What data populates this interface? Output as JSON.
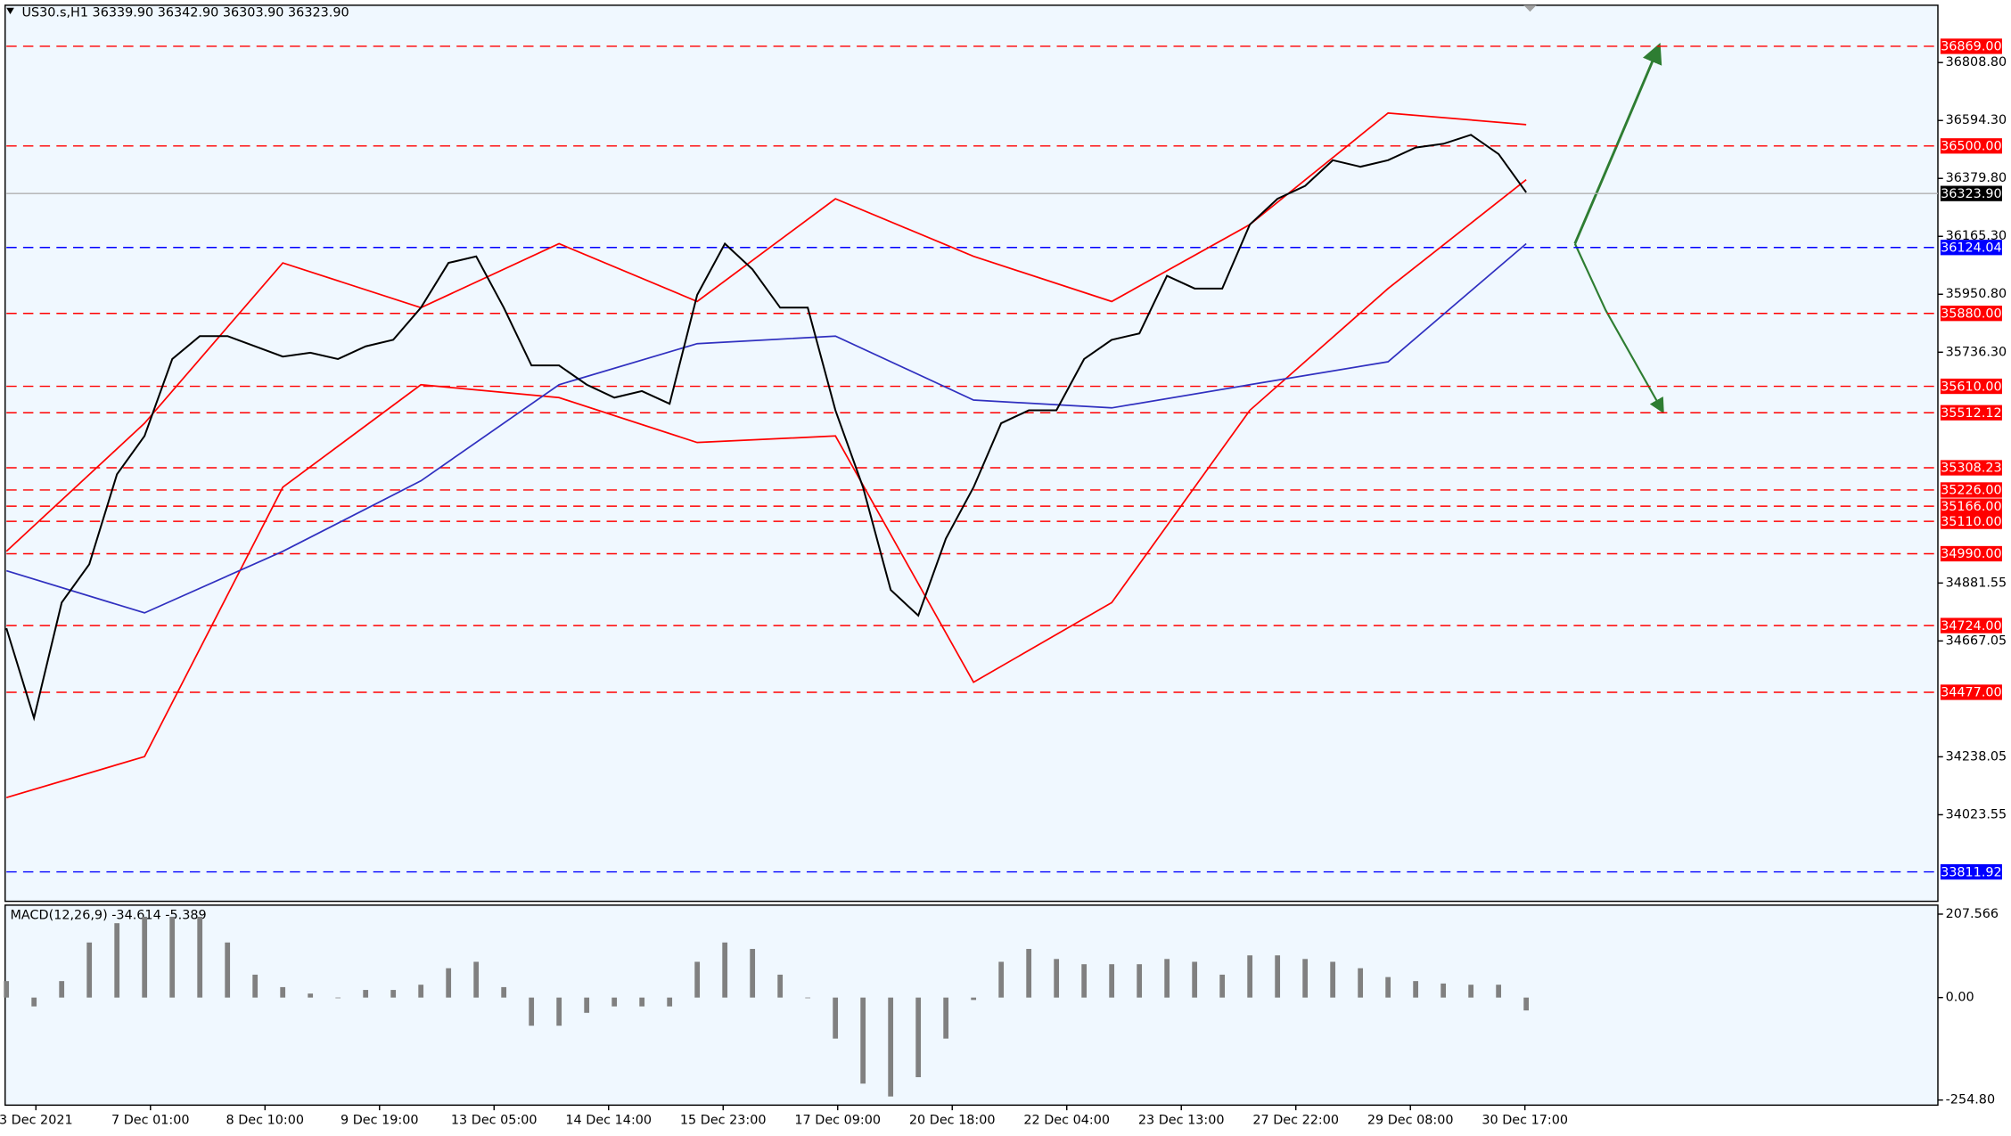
{
  "chart_data": [
    {
      "type": "line",
      "title": "US30.s,H1  36339.90 36342.90 36303.90 36323.90",
      "ylim": [
        33703,
        37021
      ],
      "yticks": [
        {
          "value": 36808.8,
          "label": "36808.80"
        },
        {
          "value": 36594.3,
          "label": "36594.30"
        },
        {
          "value": 36379.8,
          "label": "36379.80"
        },
        {
          "value": 36165.3,
          "label": "36165.30"
        },
        {
          "value": 35950.8,
          "label": "35950.80"
        },
        {
          "value": 35736.3,
          "label": "35736.30"
        },
        {
          "value": 34881.55,
          "label": "34881.55"
        },
        {
          "value": 34667.05,
          "label": "34667.05"
        },
        {
          "value": 34238.05,
          "label": "34238.05"
        },
        {
          "value": 34023.55,
          "label": "34023.55"
        }
      ],
      "x_labels": [
        "3 Dec 2021",
        "7 Dec 01:00",
        "8 Dec 10:00",
        "9 Dec 19:00",
        "13 Dec 05:00",
        "14 Dec 14:00",
        "15 Dec 23:00",
        "17 Dec 09:00",
        "20 Dec 18:00",
        "22 Dec 04:00",
        "23 Dec 13:00",
        "27 Dec 22:00",
        "29 Dec 08:00",
        "30 Dec 17:00"
      ],
      "levels": [
        {
          "value": 36869,
          "label": "36869.00",
          "color": "#ff0000",
          "line": "dashed"
        },
        {
          "value": 36500,
          "label": "36500.00",
          "color": "#ff0000",
          "line": "dashed"
        },
        {
          "value": 36323.9,
          "label": "36323.90",
          "color": "#000000",
          "line": "solid"
        },
        {
          "value": 36124.04,
          "label": "36124.04",
          "color": "#0000ff",
          "line": "dashed"
        },
        {
          "value": 35880,
          "label": "35880.00",
          "color": "#ff0000",
          "line": "dashed"
        },
        {
          "value": 35610,
          "label": "35610.00",
          "color": "#ff0000",
          "line": "dashed"
        },
        {
          "value": 35512.12,
          "label": "35512.12",
          "color": "#ff0000",
          "line": "dashed"
        },
        {
          "value": 35308.23,
          "label": "35308.23",
          "color": "#ff0000",
          "line": "dashed"
        },
        {
          "value": 35226,
          "label": "35226.00",
          "color": "#ff0000",
          "line": "dashed"
        },
        {
          "value": 35166,
          "label": "35166.00",
          "color": "#ff0000",
          "line": "dashed"
        },
        {
          "value": 35110,
          "label": "35110.00",
          "color": "#ff0000",
          "line": "dashed"
        },
        {
          "value": 34990,
          "label": "34990.00",
          "color": "#ff0000",
          "line": "dashed"
        },
        {
          "value": 34724,
          "label": "34724.00",
          "color": "#ff0000",
          "line": "dashed"
        },
        {
          "value": 34477,
          "label": "34477.00",
          "color": "#ff0000",
          "line": "dashed"
        },
        {
          "value": 33811.92,
          "label": "33811.92",
          "color": "#0000ff",
          "line": "dashed"
        }
      ],
      "series": [
        {
          "color": "#ff0000",
          "values": [
            34999,
            35473,
            36067,
            35901,
            36138,
            35924,
            36304,
            36091,
            35924,
            36209,
            36622,
            36579
          ]
        },
        {
          "color": "#ff0000",
          "values": [
            34087,
            34239,
            35236,
            35616,
            35568,
            35402,
            35426,
            34514,
            34809,
            35521,
            35972,
            36375
          ]
        },
        {
          "color": "#3030c0",
          "values": [
            34927,
            34771,
            34999,
            35260,
            35616,
            35768,
            35796,
            35559,
            35530,
            35616,
            35701,
            36138
          ]
        },
        {
          "color": "#000000",
          "values": [
            34714,
            34382,
            34809,
            34951,
            35284,
            35426,
            35711,
            35796,
            35796,
            35758,
            35720,
            35734,
            35711,
            35758,
            35782,
            35901,
            36067,
            36091,
            35901,
            35687,
            35687,
            35616,
            35568,
            35592,
            35545,
            35948,
            36138,
            36043,
            35901,
            35901,
            35521,
            35236,
            34856,
            34761,
            35046,
            35236,
            35473,
            35521,
            35521,
            35711,
            35782,
            35806,
            36019,
            35972,
            35972,
            36209,
            36304,
            36352,
            36447,
            36423,
            36447,
            36494,
            36508,
            36541,
            36470,
            36328
          ]
        }
      ]
    },
    {
      "type": "bar",
      "title": "MACD(12,26,9) -34.614 -5.389",
      "color": "#808080",
      "ylim": [
        -267.5,
        229.9
      ],
      "yticks": [
        207.566,
        {
          "value": 0,
          "label": "0.00"
        },
        {
          "value": -254.8,
          "label": "-254.80"
        }
      ],
      "values": [
        41,
        -22,
        41,
        137,
        185,
        201,
        201,
        201,
        137,
        57,
        26,
        10,
        0,
        19,
        19,
        32,
        73,
        89,
        26,
        -70,
        -70,
        -38,
        -22,
        -22,
        -22,
        89,
        137,
        121,
        57,
        0,
        -102,
        -214,
        -246,
        -198,
        -102,
        -6,
        89,
        121,
        96,
        83,
        83,
        83,
        96,
        89,
        57,
        105,
        105,
        96,
        89,
        73,
        51,
        41,
        35,
        32,
        32,
        -32
      ]
    }
  ]
}
